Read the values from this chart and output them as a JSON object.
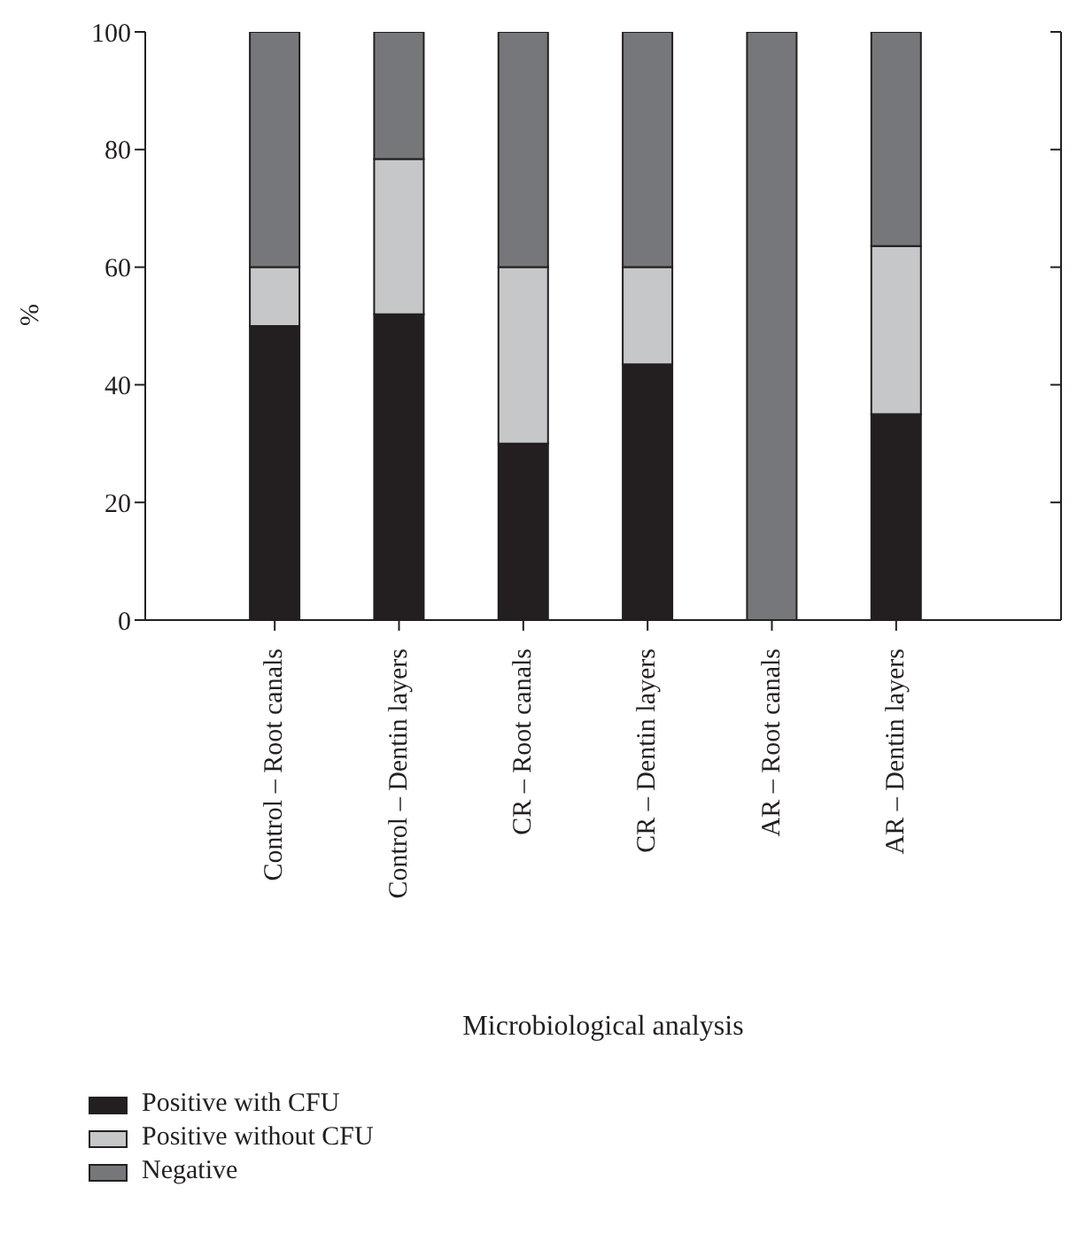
{
  "chart_data": {
    "type": "bar",
    "stacked": true,
    "xlabel": "Microbiological analysis",
    "ylabel": "%",
    "categories": [
      "Control – Root canals",
      "Control – Dentin layers",
      "CR – Root canals",
      "CR – Dentin layers",
      "AR – Root canals",
      "AR – Dentin layers"
    ],
    "series": [
      {
        "name": "Positive with CFU",
        "color": "#231f20",
        "values": [
          50,
          52,
          30,
          43.5,
          0,
          35
        ]
      },
      {
        "name": "Positive without CFU",
        "color": "#c6c7c8",
        "values": [
          10,
          26.4,
          30,
          16.5,
          0,
          28.6
        ]
      },
      {
        "name": "Negative",
        "color": "#76777a",
        "values": [
          40,
          21.6,
          40,
          40,
          100,
          36.4
        ]
      }
    ],
    "ylim": [
      0,
      100
    ],
    "yticks": [
      0,
      20,
      40,
      60,
      80,
      100
    ],
    "legend": "bottom left"
  }
}
